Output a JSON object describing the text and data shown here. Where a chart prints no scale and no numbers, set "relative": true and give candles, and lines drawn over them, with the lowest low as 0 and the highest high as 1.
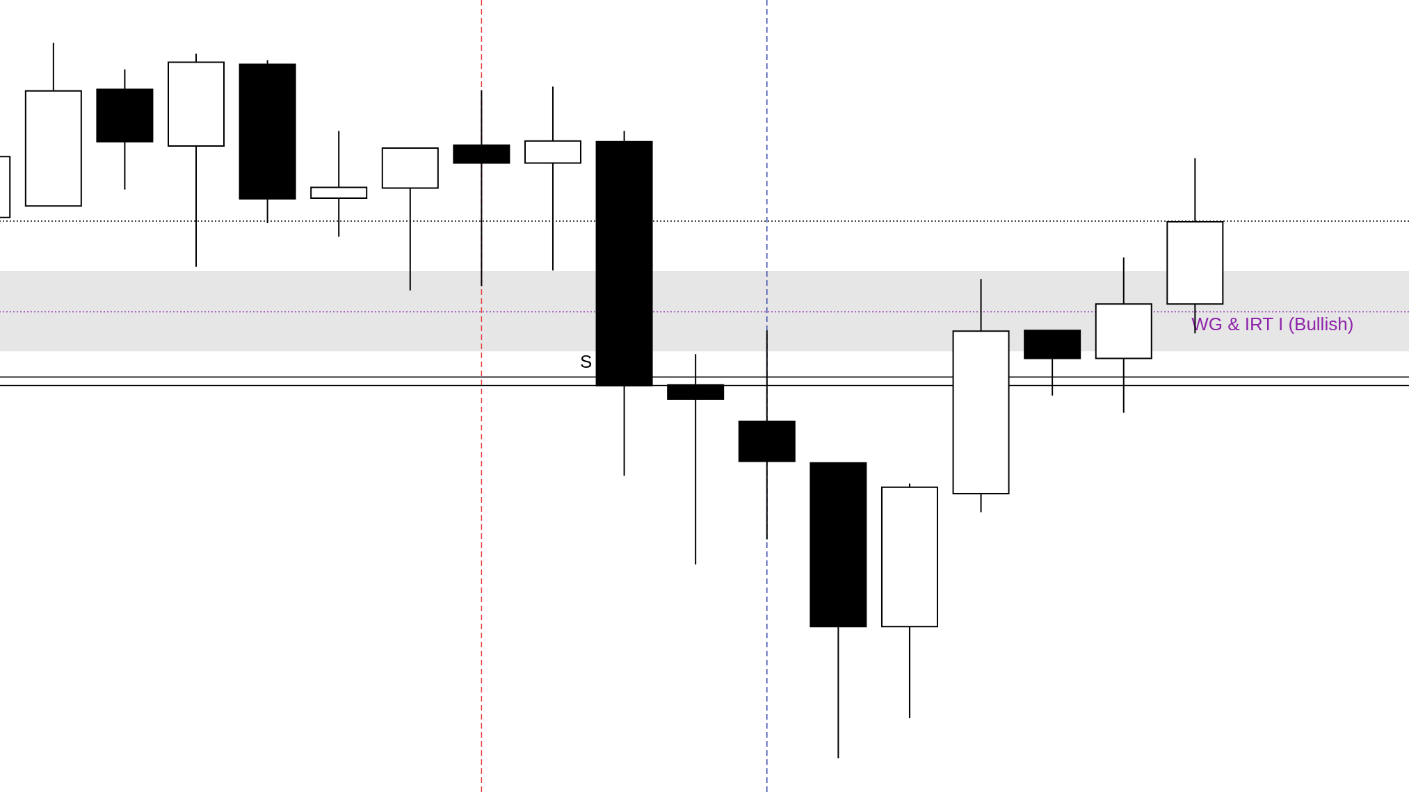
{
  "chart_data": {
    "type": "candlestick",
    "relative": true,
    "categories": [
      null,
      null,
      null,
      null,
      null,
      null,
      null,
      null,
      null,
      null,
      null,
      null,
      null,
      null,
      null,
      null,
      null,
      null
    ],
    "ohlc": [
      [
        0.756,
        0.841,
        0.756,
        0.841
      ],
      [
        0.772,
        1.0,
        0.772,
        0.933
      ],
      [
        0.935,
        0.963,
        0.795,
        0.862
      ],
      [
        0.856,
        0.985,
        0.687,
        0.973
      ],
      [
        0.97,
        0.976,
        0.748,
        0.782
      ],
      [
        0.783,
        0.877,
        0.729,
        0.798
      ],
      [
        0.797,
        0.853,
        0.654,
        0.853
      ],
      [
        0.857,
        0.934,
        0.66,
        0.832
      ],
      [
        0.832,
        0.939,
        0.682,
        0.863
      ],
      [
        0.862,
        0.877,
        0.395,
        0.521
      ],
      [
        0.522,
        0.565,
        0.271,
        0.502
      ],
      [
        0.471,
        0.598,
        0.306,
        0.415
      ],
      [
        0.413,
        0.413,
        0.0,
        0.184
      ],
      [
        0.184,
        0.384,
        0.056,
        0.379
      ],
      [
        0.37,
        0.67,
        0.344,
        0.597
      ],
      [
        0.598,
        0.598,
        0.507,
        0.559
      ],
      [
        0.559,
        0.7,
        0.483,
        0.635
      ],
      [
        0.635,
        0.839,
        0.594,
        0.75
      ]
    ],
    "ref_lines": [
      {
        "axis": "y",
        "value": 0.751,
        "color": "#000000",
        "line_style": "dotted"
      },
      {
        "axis": "y",
        "value": 0.624,
        "color": "#8e24aa",
        "line_style": "dotted"
      },
      {
        "axis": "y",
        "value": 0.533,
        "color": "#000000",
        "line_style": "solid"
      },
      {
        "axis": "y",
        "value": 0.521,
        "color": "#000000",
        "line_style": "solid"
      }
    ],
    "bands": [
      {
        "axis": "y",
        "from": 0.569,
        "to": 0.681,
        "label": "WG & IRT I (Bullish)",
        "color": "#e6e6e6"
      }
    ],
    "annotations": [
      "S"
    ]
  }
}
